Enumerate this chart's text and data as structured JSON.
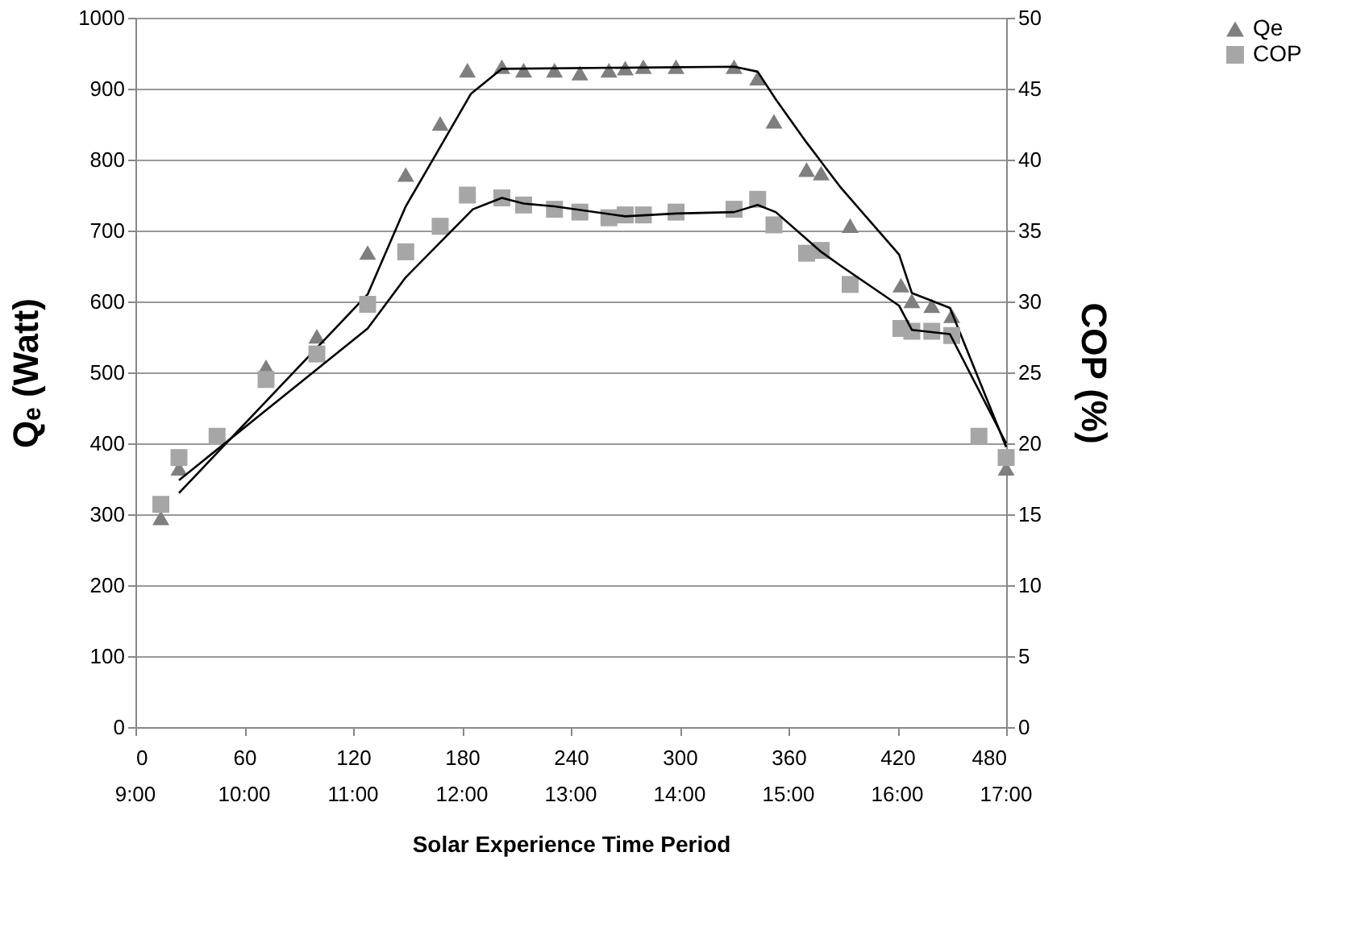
{
  "chart_data": {
    "type": "scatter",
    "xlabel": "Solar Experience Time Period",
    "ylabel": "Qₑ (Watt)",
    "y2label": "COP (%)",
    "xlim": [
      0,
      480
    ],
    "xticks": [
      0,
      60,
      120,
      180,
      240,
      300,
      360,
      420,
      480
    ],
    "x2lim": [
      9,
      17
    ],
    "x2ticks": [
      {
        "value": 9,
        "label": "9:00"
      },
      {
        "value": 10,
        "label": "10:00"
      },
      {
        "value": 11,
        "label": "11:00"
      },
      {
        "value": 12,
        "label": "12:00"
      },
      {
        "value": 13,
        "label": "13:00"
      },
      {
        "value": 14,
        "label": "14:00"
      },
      {
        "value": 15,
        "label": "15:00"
      },
      {
        "value": 16,
        "label": "16:00"
      },
      {
        "value": 17,
        "label": "17:00"
      }
    ],
    "ylim": [
      0,
      1000
    ],
    "yticks": [
      0,
      100,
      200,
      300,
      400,
      500,
      600,
      700,
      800,
      900,
      1000
    ],
    "y2lim": [
      0,
      50
    ],
    "y2ticks": [
      0,
      5,
      10,
      15,
      20,
      25,
      30,
      35,
      40,
      45,
      50
    ],
    "grid": "y",
    "legend": "right",
    "series": [
      {
        "name": "Qe",
        "marker": "triangle",
        "color": "#7f7f7f",
        "x": [
          14,
          24,
          72,
          100,
          128,
          149,
          168,
          183,
          202,
          214,
          231,
          245,
          261,
          270,
          280,
          298,
          330,
          343,
          352,
          370,
          378,
          394,
          422,
          428,
          439,
          450,
          480
        ],
        "values": [
          295,
          365,
          508,
          551,
          669,
          779,
          851,
          926,
          931,
          926,
          926,
          922,
          926,
          929,
          931,
          931,
          931,
          915,
          854,
          786,
          781,
          707,
          623,
          601,
          594,
          580,
          365
        ]
      },
      {
        "name": "COP",
        "marker": "square",
        "color": "#a6a6a6",
        "axis": "y2",
        "x": [
          14,
          24,
          45,
          72,
          100,
          128,
          149,
          168,
          183,
          202,
          214,
          231,
          245,
          261,
          270,
          280,
          298,
          330,
          343,
          352,
          370,
          378,
          394,
          422,
          428,
          439,
          450,
          465,
          480
        ],
        "values": [
          15.7,
          19.0,
          20.5,
          24.5,
          26.3,
          29.8,
          33.5,
          35.3,
          37.5,
          37.3,
          36.8,
          36.5,
          36.3,
          35.9,
          36.1,
          36.1,
          36.3,
          36.5,
          37.2,
          35.4,
          33.4,
          33.6,
          31.2,
          28.1,
          27.9,
          27.9,
          27.6,
          20.5,
          19.0
        ]
      },
      {
        "type": "line",
        "marker": "none",
        "line_style": "solid",
        "color": "#000000",
        "x": [
          24,
          128,
          149,
          166,
          185,
          202,
          330,
          343,
          353,
          370,
          389,
          421,
          428,
          449,
          480
        ],
        "values": [
          330,
          610,
          734,
          809,
          893,
          928,
          931,
          924,
          885,
          824,
          760,
          666,
          612,
          591,
          395
        ]
      },
      {
        "type": "line",
        "marker": "none",
        "line_style": "solid",
        "color": "#000000",
        "axis": "y2",
        "x": [
          24,
          128,
          149,
          186,
          202,
          214,
          231,
          270,
          298,
          330,
          343,
          353,
          378,
          389,
          421,
          428,
          449,
          480
        ],
        "values": [
          17.4,
          28.1,
          31.7,
          36.5,
          37.3,
          36.9,
          36.7,
          36.0,
          36.2,
          36.3,
          36.8,
          36.3,
          33.5,
          32.5,
          29.7,
          28.0,
          27.7,
          20.0
        ]
      }
    ]
  }
}
